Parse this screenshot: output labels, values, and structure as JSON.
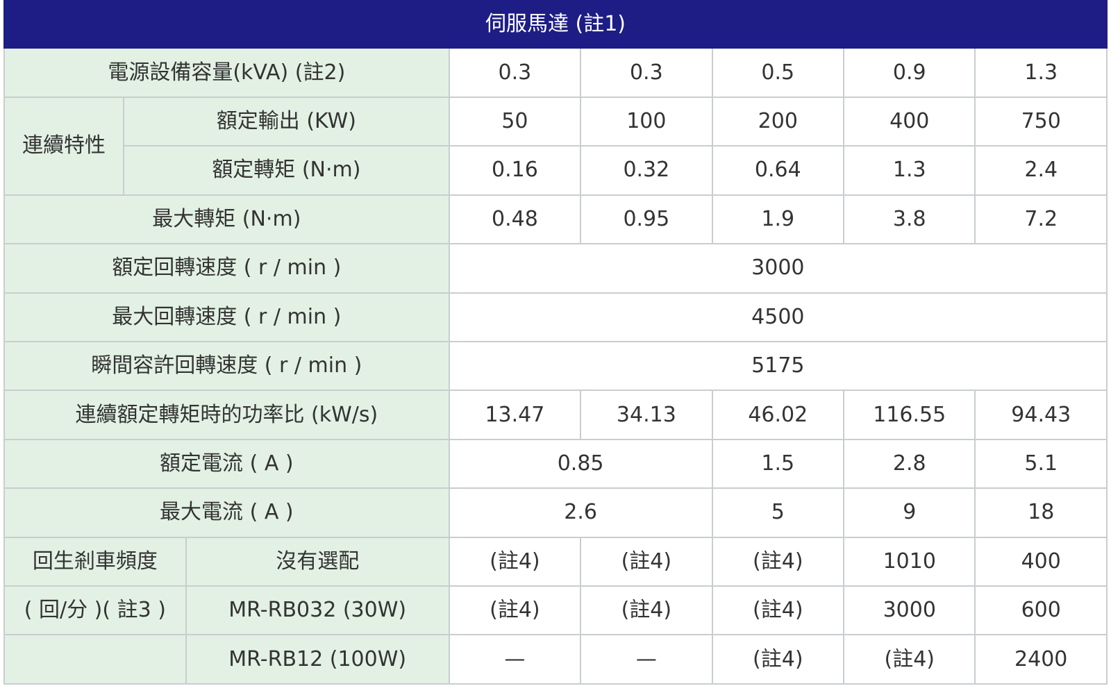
{
  "title": "伺服馬達 (註1)",
  "rows": {
    "power_capacity": {
      "label": "電源設備容量(kVA) (註2)",
      "values": [
        "0.3",
        "0.3",
        "0.5",
        "0.9",
        "1.3"
      ]
    },
    "continuous": {
      "group_label": "連續特性",
      "rated_output": {
        "label": "額定輸出 (KW)",
        "values": [
          "50",
          "100",
          "200",
          "400",
          "750"
        ]
      },
      "rated_torque": {
        "label": "額定轉矩 (N·m)",
        "values": [
          "0.16",
          "0.32",
          "0.64",
          "1.3",
          "2.4"
        ]
      }
    },
    "max_torque": {
      "label": "最大轉矩 (N·m)",
      "values": [
        "0.48",
        "0.95",
        "1.9",
        "3.8",
        "7.2"
      ]
    },
    "rated_speed": {
      "label": "額定回轉速度 ( r / min )",
      "value": "3000"
    },
    "max_speed": {
      "label": "最大回轉速度 ( r / min )",
      "value": "4500"
    },
    "instant_speed": {
      "label": "瞬間容許回轉速度 ( r / min )",
      "value": "5175"
    },
    "power_rate": {
      "label": "連續額定轉矩時的功率比 (kW/s)",
      "values": [
        "13.47",
        "34.13",
        "46.02",
        "116.55",
        "94.43"
      ]
    },
    "rated_current": {
      "label": "額定電流 ( A )",
      "merged": "0.85",
      "values": [
        "1.5",
        "2.8",
        "5.1"
      ]
    },
    "max_current": {
      "label": "最大電流 ( A )",
      "merged": "2.6",
      "values": [
        "5",
        "9",
        "18"
      ]
    },
    "regen": {
      "group_label_1": "回生剎車頻度",
      "group_label_2": "( 回/分 )( 註3 )",
      "none": {
        "label": "沒有選配",
        "values": [
          "(註4)",
          "(註4)",
          "(註4)",
          "1010",
          "400"
        ]
      },
      "rb032": {
        "label": "MR-RB032 (30W)",
        "values": [
          "(註4)",
          "(註4)",
          "(註4)",
          "3000",
          "600"
        ]
      },
      "rb12": {
        "label": "MR-RB12 (100W)",
        "values": [
          "—",
          "—",
          "(註4)",
          "(註4)",
          "2400"
        ]
      }
    }
  }
}
